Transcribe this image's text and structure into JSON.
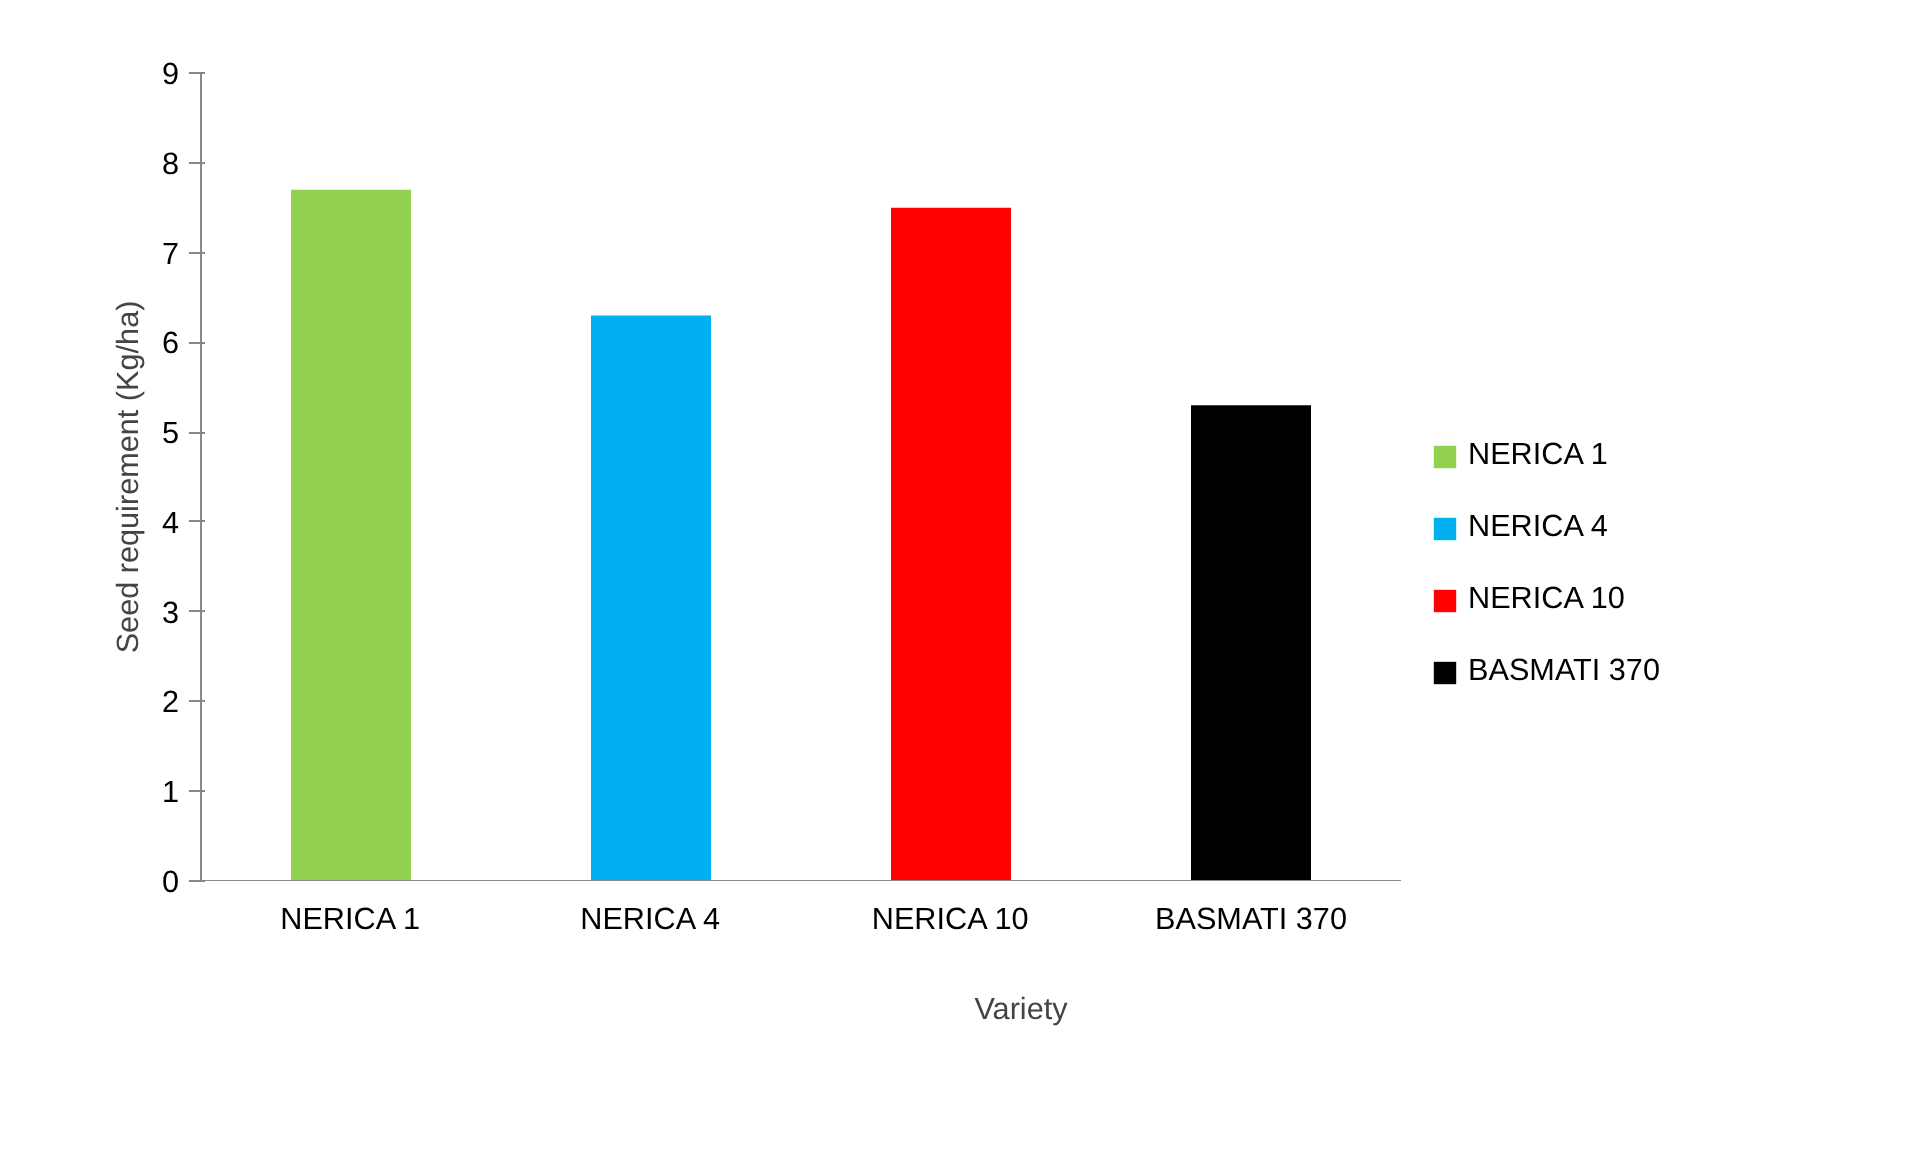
{
  "chart_data": {
    "type": "bar",
    "xlabel": "Variety",
    "ylabel": "Seed requirement (Kg/ha)",
    "categories": [
      "NERICA 1",
      "NERICA 4",
      "NERICA 10",
      "BASMATI 370"
    ],
    "series": [
      {
        "name": "NERICA 1",
        "color": "#92d050",
        "values": [
          7.7,
          null,
          null,
          null
        ]
      },
      {
        "name": "NERICA 4",
        "color": "#00b0f0",
        "values": [
          null,
          6.3,
          null,
          null
        ]
      },
      {
        "name": "NERICA 10",
        "color": "#ff0000",
        "values": [
          null,
          null,
          7.5,
          null
        ]
      },
      {
        "name": "BASMATI 370",
        "color": "#000000",
        "values": [
          null,
          null,
          null,
          5.3
        ]
      }
    ],
    "ylim": [
      0,
      9
    ],
    "yticks": [
      0,
      1,
      2,
      3,
      4,
      5,
      6,
      7,
      8,
      9
    ],
    "grid": false,
    "legend": "right"
  }
}
